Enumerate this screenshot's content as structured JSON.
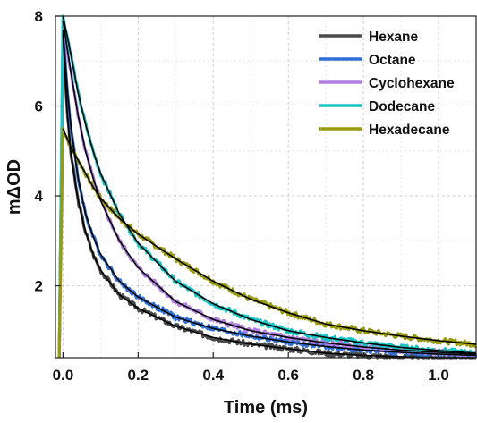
{
  "chart_data": {
    "type": "line",
    "title": "",
    "xlabel": "Time (ms)",
    "ylabel": "mΔOD",
    "xlim": [
      -0.02,
      1.1
    ],
    "ylim": [
      0.4,
      8
    ],
    "x_ticks": [
      0.0,
      0.2,
      0.4,
      0.6,
      0.8,
      1.0
    ],
    "x_tick_labels": [
      "0.0",
      "0.2",
      "0.4",
      "0.6",
      "0.8",
      "1.0"
    ],
    "y_ticks": [
      2,
      4,
      6,
      8
    ],
    "y_tick_labels": [
      "2",
      "4",
      "6",
      "8"
    ],
    "grid": true,
    "legend_position": "top-right",
    "fit_color": "#000000",
    "series": [
      {
        "name": "Hexane",
        "color": "#4a4a4a",
        "x": [
          0.0,
          0.01,
          0.02,
          0.04,
          0.06,
          0.08,
          0.1,
          0.15,
          0.2,
          0.3,
          0.4,
          0.5,
          0.6,
          0.7,
          0.8,
          0.9,
          1.0,
          1.1
        ],
        "y": [
          7.6,
          6.0,
          5.0,
          3.9,
          3.2,
          2.7,
          2.35,
          1.8,
          1.5,
          1.1,
          0.85,
          0.7,
          0.6,
          0.5,
          0.45,
          0.42,
          0.4,
          0.38
        ]
      },
      {
        "name": "Octane",
        "color": "#2f6fd6",
        "x": [
          0.0,
          0.01,
          0.02,
          0.04,
          0.06,
          0.08,
          0.1,
          0.15,
          0.2,
          0.3,
          0.4,
          0.5,
          0.6,
          0.7,
          0.8,
          0.9,
          1.0,
          1.1
        ],
        "y": [
          7.7,
          6.5,
          5.6,
          4.4,
          3.6,
          3.1,
          2.7,
          2.1,
          1.75,
          1.3,
          1.05,
          0.88,
          0.75,
          0.65,
          0.57,
          0.52,
          0.48,
          0.45
        ]
      },
      {
        "name": "Cyclohexane",
        "color": "#b07ee0",
        "x": [
          0.0,
          0.02,
          0.04,
          0.06,
          0.08,
          0.1,
          0.15,
          0.2,
          0.3,
          0.4,
          0.5,
          0.6,
          0.7,
          0.8,
          0.9,
          1.0,
          1.1
        ],
        "y": [
          7.9,
          6.8,
          5.8,
          5.0,
          4.4,
          3.9,
          3.0,
          2.4,
          1.65,
          1.25,
          1.0,
          0.85,
          0.73,
          0.64,
          0.57,
          0.52,
          0.48
        ]
      },
      {
        "name": "Dodecane",
        "color": "#18c4c4",
        "x": [
          0.0,
          0.02,
          0.04,
          0.06,
          0.08,
          0.1,
          0.15,
          0.2,
          0.3,
          0.4,
          0.5,
          0.6,
          0.7,
          0.8,
          0.9,
          1.0,
          1.1
        ],
        "y": [
          8.0,
          7.2,
          6.3,
          5.6,
          5.0,
          4.5,
          3.6,
          2.95,
          2.1,
          1.6,
          1.25,
          1.0,
          0.85,
          0.73,
          0.63,
          0.56,
          0.5
        ]
      },
      {
        "name": "Hexadecane",
        "color": "#9a9a10",
        "x": [
          0.0,
          0.02,
          0.04,
          0.06,
          0.08,
          0.1,
          0.15,
          0.2,
          0.3,
          0.4,
          0.5,
          0.6,
          0.7,
          0.8,
          0.9,
          1.0,
          1.1
        ],
        "y": [
          5.5,
          5.1,
          4.8,
          4.5,
          4.2,
          3.95,
          3.5,
          3.15,
          2.6,
          2.1,
          1.7,
          1.4,
          1.15,
          1.0,
          0.88,
          0.78,
          0.7
        ]
      }
    ]
  }
}
